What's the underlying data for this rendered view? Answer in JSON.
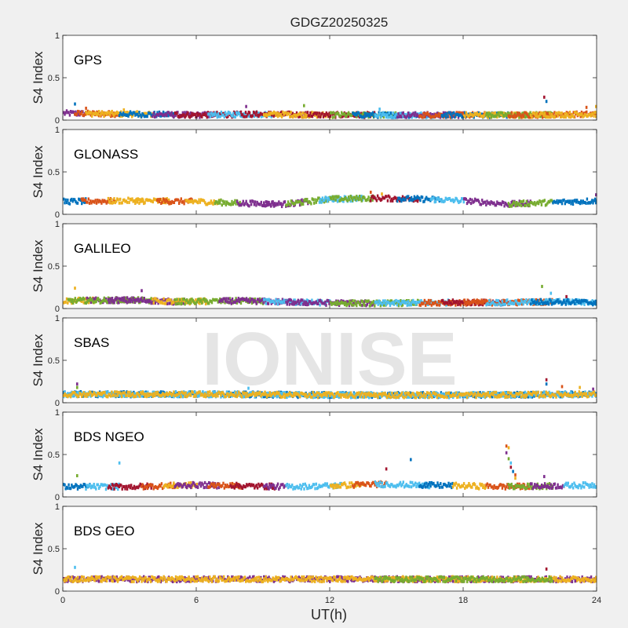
{
  "figure_title": "GDGZ20250325",
  "watermark": "IONISE",
  "chart_data": {
    "type": "scatter",
    "title": "GDGZ20250325",
    "xlabel": "UT(h)",
    "ylabel": "S4 Index",
    "xlim": [
      0,
      24
    ],
    "ylim": [
      0,
      1
    ],
    "xticks": [
      0,
      6,
      12,
      18,
      24
    ],
    "yticks": [
      0,
      0.5,
      1
    ],
    "ytick_labels": [
      "0",
      "0.5",
      "1"
    ],
    "grid": false,
    "colors": [
      "#0072BD",
      "#D95319",
      "#EDB120",
      "#7E2F8E",
      "#77AC30",
      "#4DBEEE",
      "#A2142F"
    ],
    "panels": [
      {
        "label": "GPS",
        "baseline": [
          [
            0,
            0.08
          ],
          [
            3,
            0.07
          ],
          [
            6,
            0.06
          ],
          [
            9,
            0.07
          ],
          [
            12,
            0.06
          ],
          [
            15,
            0.06
          ],
          [
            18,
            0.06
          ],
          [
            21,
            0.06
          ],
          [
            24,
            0.07
          ]
        ],
        "segments": [
          [
            0,
            1,
            3
          ],
          [
            0.5,
            2.5,
            1
          ],
          [
            1,
            4,
            2
          ],
          [
            2.5,
            5,
            0
          ],
          [
            4,
            7,
            3
          ],
          [
            5,
            8,
            6
          ],
          [
            6.5,
            9.5,
            5
          ],
          [
            8,
            11,
            6
          ],
          [
            9,
            12,
            2
          ],
          [
            11,
            14,
            6
          ],
          [
            12,
            15,
            4
          ],
          [
            13,
            16,
            0
          ],
          [
            14,
            17,
            5
          ],
          [
            15,
            18,
            3
          ],
          [
            16,
            19,
            1
          ],
          [
            17,
            20,
            0
          ],
          [
            18,
            21,
            2
          ],
          [
            19,
            22,
            4
          ],
          [
            20,
            24,
            1
          ],
          [
            21,
            24,
            2
          ]
        ],
        "outliers": [
          [
            0.5,
            0.19
          ],
          [
            1,
            0.14
          ],
          [
            2.7,
            0.12
          ],
          [
            8.2,
            0.16
          ],
          [
            10.8,
            0.17
          ],
          [
            14.2,
            0.13
          ],
          [
            21.6,
            0.27
          ],
          [
            21.7,
            0.22
          ],
          [
            23.5,
            0.15
          ],
          [
            24,
            0.16
          ]
        ]
      },
      {
        "label": "GLONASS",
        "baseline": [
          [
            0,
            0.15
          ],
          [
            3,
            0.16
          ],
          [
            6,
            0.15
          ],
          [
            8,
            0.13
          ],
          [
            10,
            0.12
          ],
          [
            12,
            0.18
          ],
          [
            14,
            0.19
          ],
          [
            16,
            0.18
          ],
          [
            18,
            0.16
          ],
          [
            20,
            0.12
          ],
          [
            22,
            0.14
          ],
          [
            24,
            0.16
          ]
        ],
        "segments": [
          [
            0,
            1,
            0
          ],
          [
            0.8,
            2.3,
            1
          ],
          [
            2,
            3.6,
            2
          ],
          [
            3.2,
            4.8,
            2
          ],
          [
            4.2,
            5.8,
            1
          ],
          [
            5.5,
            7,
            2
          ],
          [
            6.8,
            8,
            4
          ],
          [
            7.8,
            9.5,
            3
          ],
          [
            9,
            11,
            3
          ],
          [
            10,
            12,
            4
          ],
          [
            11.5,
            13.5,
            5
          ],
          [
            12,
            14,
            4
          ],
          [
            13.8,
            16,
            6
          ],
          [
            15,
            17,
            0
          ],
          [
            16.5,
            18,
            5
          ],
          [
            18,
            19.5,
            3
          ],
          [
            19.5,
            21,
            3
          ],
          [
            20,
            22,
            4
          ],
          [
            22,
            24,
            0
          ]
        ],
        "outliers": [
          [
            13.8,
            0.26
          ],
          [
            14.3,
            0.24
          ],
          [
            24,
            0.23
          ]
        ]
      },
      {
        "label": "GALILEO",
        "baseline": [
          [
            0,
            0.09
          ],
          [
            3,
            0.1
          ],
          [
            5,
            0.08
          ],
          [
            8,
            0.09
          ],
          [
            11,
            0.07
          ],
          [
            14,
            0.06
          ],
          [
            17,
            0.07
          ],
          [
            20,
            0.07
          ],
          [
            22,
            0.08
          ],
          [
            24,
            0.07
          ]
        ],
        "segments": [
          [
            0,
            1.5,
            2
          ],
          [
            1,
            3.6,
            3
          ],
          [
            0.2,
            4.2,
            4
          ],
          [
            2,
            5.5,
            3
          ],
          [
            4,
            6.5,
            2
          ],
          [
            5,
            9,
            4
          ],
          [
            7,
            11,
            3
          ],
          [
            9,
            12,
            5
          ],
          [
            10,
            14,
            3
          ],
          [
            12,
            16,
            4
          ],
          [
            14,
            17.5,
            5
          ],
          [
            16,
            19,
            1
          ],
          [
            17,
            20,
            6
          ],
          [
            18,
            22,
            1
          ],
          [
            19,
            24,
            5
          ],
          [
            21,
            24,
            0
          ]
        ],
        "outliers": [
          [
            0.5,
            0.24
          ],
          [
            3.5,
            0.21
          ],
          [
            21.5,
            0.26
          ],
          [
            21.9,
            0.18
          ],
          [
            22.6,
            0.14
          ]
        ]
      },
      {
        "label": "SBAS",
        "baseline": [
          [
            0,
            0.1
          ],
          [
            6,
            0.1
          ],
          [
            12,
            0.09
          ],
          [
            18,
            0.09
          ],
          [
            24,
            0.1
          ]
        ],
        "segments": [
          [
            0,
            24,
            0
          ],
          [
            0,
            24,
            5
          ],
          [
            0,
            24,
            2
          ]
        ],
        "outliers": [
          [
            0.6,
            0.22
          ],
          [
            0.6,
            0.18
          ],
          [
            8.3,
            0.17
          ],
          [
            21.7,
            0.27
          ],
          [
            21.7,
            0.22
          ],
          [
            22.4,
            0.19
          ],
          [
            23.2,
            0.18
          ],
          [
            23.8,
            0.16
          ]
        ]
      },
      {
        "label": "BDS NGEO",
        "baseline": [
          [
            0,
            0.12
          ],
          [
            3,
            0.12
          ],
          [
            6,
            0.14
          ],
          [
            8,
            0.13
          ],
          [
            10,
            0.12
          ],
          [
            12,
            0.13
          ],
          [
            14,
            0.15
          ],
          [
            16,
            0.14
          ],
          [
            18,
            0.13
          ],
          [
            20,
            0.12
          ],
          [
            22,
            0.13
          ],
          [
            24,
            0.14
          ]
        ],
        "segments": [
          [
            0,
            1.2,
            0
          ],
          [
            1,
            2.5,
            5
          ],
          [
            2,
            4,
            6
          ],
          [
            3.5,
            5,
            1
          ],
          [
            4.5,
            6,
            2
          ],
          [
            5,
            7,
            3
          ],
          [
            6.5,
            8,
            1
          ],
          [
            7.5,
            9.5,
            6
          ],
          [
            9,
            10,
            3
          ],
          [
            10,
            12.5,
            5
          ],
          [
            12,
            13.5,
            2
          ],
          [
            13,
            14.5,
            1
          ],
          [
            14,
            15,
            5
          ],
          [
            15,
            16.5,
            5
          ],
          [
            16,
            17.5,
            0
          ],
          [
            17.5,
            19,
            2
          ],
          [
            19,
            21,
            1
          ],
          [
            20,
            22,
            4
          ],
          [
            21,
            22.5,
            3
          ],
          [
            22.5,
            24,
            5
          ]
        ],
        "outliers": [
          [
            0.6,
            0.25
          ],
          [
            2.5,
            0.4
          ],
          [
            14.5,
            0.33
          ],
          [
            15.6,
            0.44
          ],
          [
            19.9,
            0.6
          ],
          [
            20,
            0.58
          ],
          [
            19.9,
            0.52
          ],
          [
            20,
            0.45
          ],
          [
            20.1,
            0.4
          ],
          [
            20.1,
            0.35
          ],
          [
            20.2,
            0.3
          ],
          [
            20.3,
            0.26
          ],
          [
            20.3,
            0.22
          ],
          [
            21.6,
            0.24
          ]
        ]
      },
      {
        "label": "BDS GEO",
        "baseline": [
          [
            0,
            0.14
          ],
          [
            6,
            0.14
          ],
          [
            12,
            0.14
          ],
          [
            18,
            0.14
          ],
          [
            24,
            0.14
          ]
        ],
        "segments": [
          [
            0,
            24,
            3
          ],
          [
            0,
            24,
            2
          ],
          [
            14,
            22,
            4
          ]
        ],
        "outliers": [
          [
            0.5,
            0.28
          ],
          [
            21.7,
            0.26
          ]
        ]
      }
    ]
  }
}
